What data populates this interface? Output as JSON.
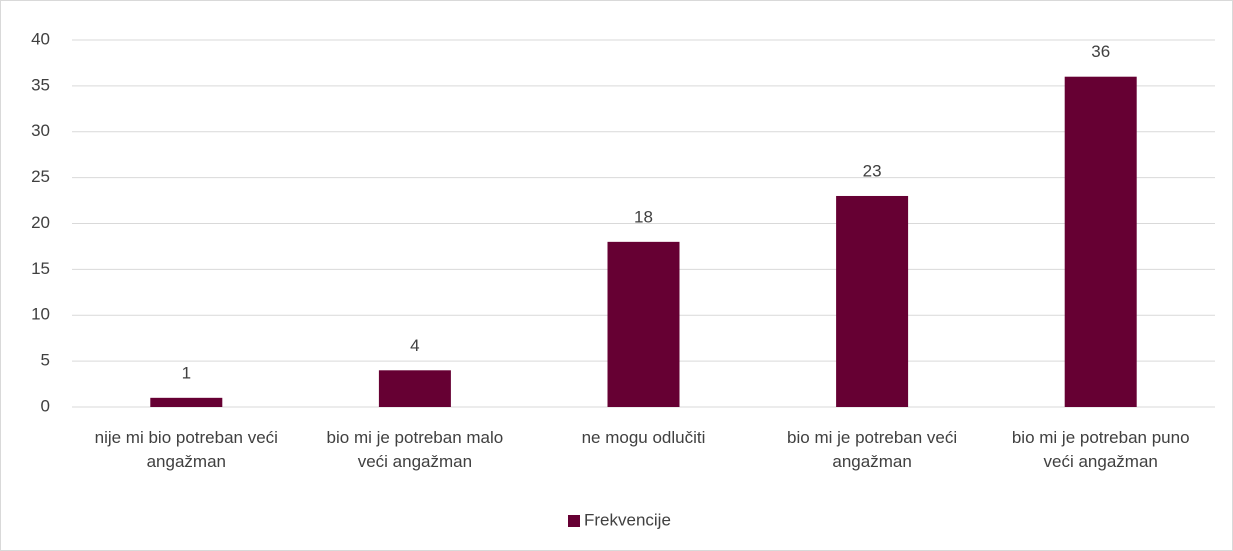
{
  "chart_data": {
    "type": "bar",
    "categories": [
      "nije mi bio potreban veći angažman",
      "bio mi je potreban malo veći angažman",
      "ne mogu odlučiti",
      "bio mi je potreban veći angažman",
      "bio mi je potreban puno veći angažman"
    ],
    "series": [
      {
        "name": "Frekvencije",
        "color": "#660033",
        "values": [
          1,
          4,
          18,
          23,
          36
        ]
      }
    ],
    "ylim": [
      0,
      40
    ],
    "yticks": [
      0,
      5,
      10,
      15,
      20,
      25,
      30,
      35,
      40
    ],
    "grid": true,
    "legend": "bottom"
  }
}
